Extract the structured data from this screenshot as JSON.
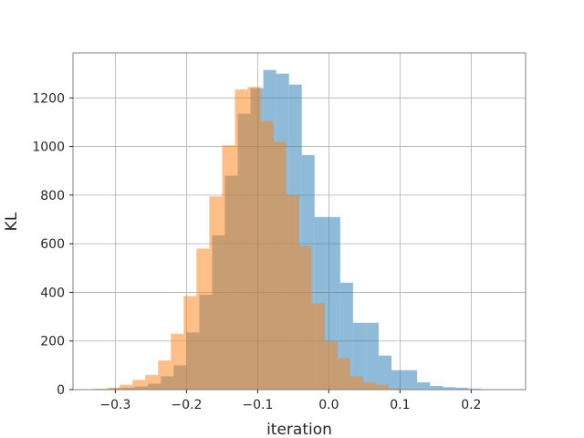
{
  "chart_data": {
    "type": "bar",
    "xlabel": "iteration",
    "ylabel": "KL",
    "xlim": [
      -0.3595,
      0.2765
    ],
    "ylim": [
      0,
      1385
    ],
    "grid": true,
    "xticks": [
      -0.3,
      -0.2,
      -0.1,
      0.0,
      0.1,
      0.2
    ],
    "xtick_labels": [
      "−0.3",
      "−0.2",
      "−0.1",
      "0.0",
      "0.1",
      "0.2"
    ],
    "yticks": [
      0,
      200,
      400,
      600,
      800,
      1000,
      1200
    ],
    "ytick_labels": [
      "0",
      "200",
      "400",
      "600",
      "800",
      "1000",
      "1200"
    ],
    "series": [
      {
        "color": "#1f77b4",
        "opacity": 0.5,
        "bins": [
          [
            -0.344,
            -0.326,
            2
          ],
          [
            -0.326,
            -0.308,
            3
          ],
          [
            -0.308,
            -0.29,
            6
          ],
          [
            -0.29,
            -0.272,
            8
          ],
          [
            -0.272,
            -0.254,
            13
          ],
          [
            -0.254,
            -0.236,
            25
          ],
          [
            -0.236,
            -0.218,
            55
          ],
          [
            -0.218,
            -0.2,
            100
          ],
          [
            -0.2,
            -0.182,
            235
          ],
          [
            -0.182,
            -0.164,
            390
          ],
          [
            -0.164,
            -0.146,
            635
          ],
          [
            -0.146,
            -0.128,
            880
          ],
          [
            -0.128,
            -0.11,
            1135
          ],
          [
            -0.11,
            -0.092,
            1240
          ],
          [
            -0.092,
            -0.074,
            1315
          ],
          [
            -0.074,
            -0.056,
            1300
          ],
          [
            -0.056,
            -0.038,
            1255
          ],
          [
            -0.038,
            -0.02,
            965
          ],
          [
            -0.02,
            -0.002,
            710
          ],
          [
            -0.002,
            0.016,
            710
          ],
          [
            0.016,
            0.034,
            440
          ],
          [
            0.034,
            0.052,
            275
          ],
          [
            0.052,
            0.07,
            275
          ],
          [
            0.07,
            0.088,
            140
          ],
          [
            0.088,
            0.106,
            80
          ],
          [
            0.106,
            0.124,
            80
          ],
          [
            0.124,
            0.142,
            30
          ],
          [
            0.142,
            0.16,
            15
          ],
          [
            0.16,
            0.178,
            10
          ],
          [
            0.178,
            0.196,
            8
          ],
          [
            0.196,
            0.214,
            4
          ],
          [
            0.214,
            0.232,
            2
          ],
          [
            0.232,
            0.25,
            1
          ]
        ]
      },
      {
        "color": "#ff7f0e",
        "opacity": 0.5,
        "bins": [
          [
            -0.33,
            -0.312,
            3
          ],
          [
            -0.312,
            -0.294,
            8
          ],
          [
            -0.294,
            -0.276,
            20
          ],
          [
            -0.276,
            -0.258,
            40
          ],
          [
            -0.258,
            -0.24,
            60
          ],
          [
            -0.24,
            -0.222,
            120
          ],
          [
            -0.222,
            -0.204,
            230
          ],
          [
            -0.204,
            -0.186,
            385
          ],
          [
            -0.186,
            -0.168,
            580
          ],
          [
            -0.168,
            -0.15,
            795
          ],
          [
            -0.15,
            -0.132,
            1005
          ],
          [
            -0.132,
            -0.114,
            1235
          ],
          [
            -0.114,
            -0.096,
            1245
          ],
          [
            -0.096,
            -0.078,
            1105
          ],
          [
            -0.078,
            -0.06,
            1020
          ],
          [
            -0.06,
            -0.042,
            800
          ],
          [
            -0.042,
            -0.024,
            590
          ],
          [
            -0.024,
            -0.006,
            355
          ],
          [
            -0.006,
            0.012,
            200
          ],
          [
            0.012,
            0.03,
            130
          ],
          [
            0.03,
            0.048,
            55
          ],
          [
            0.048,
            0.066,
            30
          ],
          [
            0.066,
            0.084,
            20
          ],
          [
            0.084,
            0.102,
            5
          ]
        ]
      }
    ]
  }
}
